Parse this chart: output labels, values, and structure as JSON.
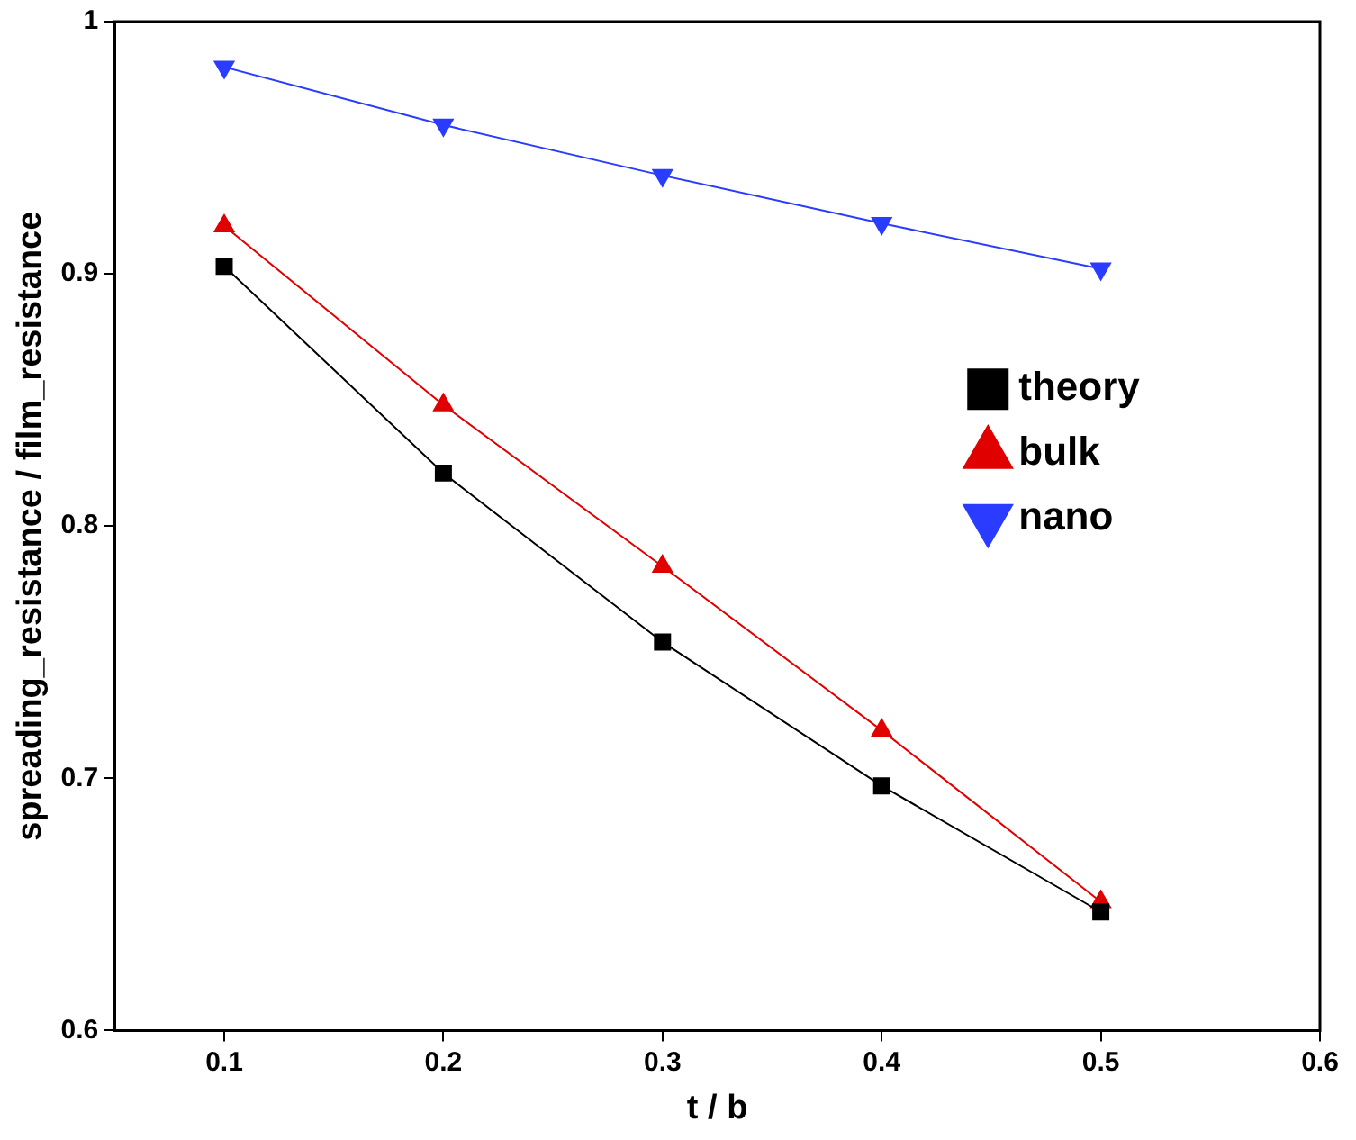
{
  "chart_data": {
    "type": "line",
    "xlabel": "t / b",
    "ylabel": "spreading_resistance / film_resistance",
    "x": [
      0.1,
      0.2,
      0.3,
      0.4,
      0.5
    ],
    "xlim": [
      0.05,
      0.6
    ],
    "xticks": [
      0.1,
      0.2,
      0.3,
      0.4,
      0.5,
      0.6
    ],
    "ylim": [
      0.6,
      1
    ],
    "yticks": [
      0.6,
      0.7,
      0.8,
      0.9,
      1
    ],
    "grid": false,
    "legend": "right",
    "line_style": "solid",
    "series": [
      {
        "name": "theory",
        "color": "#000000",
        "marker": "square",
        "values": [
          0.903,
          0.821,
          0.754,
          0.697,
          0.647
        ]
      },
      {
        "name": "bulk",
        "color": "#e00000",
        "marker": "triangle",
        "values": [
          0.919,
          0.848,
          0.784,
          0.719,
          0.651
        ]
      },
      {
        "name": "nano",
        "color": "#2a3cff",
        "marker": "triangle-down",
        "values": [
          0.982,
          0.959,
          0.939,
          0.92,
          0.902
        ]
      }
    ]
  }
}
